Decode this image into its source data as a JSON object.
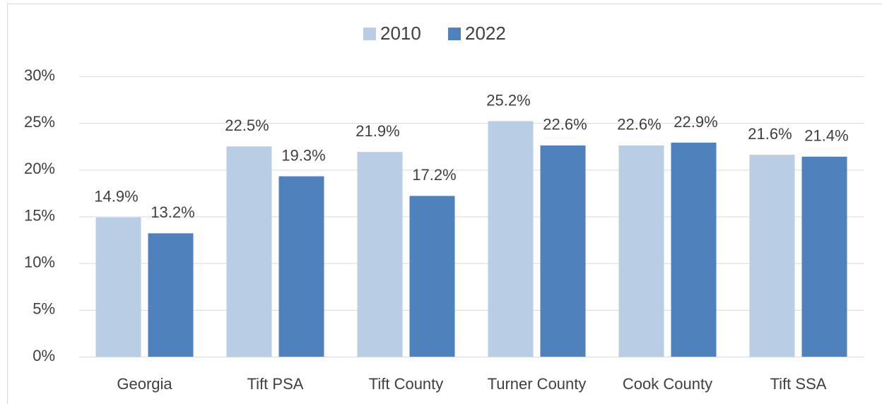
{
  "chart_data": {
    "type": "bar",
    "categories": [
      "Georgia",
      "Tift PSA",
      "Tift County",
      "Turner County",
      "Cook County",
      "Tift SSA"
    ],
    "series": [
      {
        "name": "2010",
        "color": "#b9cde5",
        "values": [
          14.9,
          22.5,
          21.9,
          25.2,
          22.6,
          21.6
        ],
        "value_labels": [
          "14.9%",
          "22.5%",
          "21.9%",
          "25.2%",
          "22.6%",
          "21.6%"
        ]
      },
      {
        "name": "2022",
        "color": "#4f81bd",
        "values": [
          13.2,
          19.3,
          17.2,
          22.6,
          22.9,
          21.4
        ],
        "value_labels": [
          "13.2%",
          "19.3%",
          "17.2%",
          "22.6%",
          "22.9%",
          "21.4%"
        ]
      }
    ],
    "ylim": [
      0,
      30
    ],
    "yticks": [
      {
        "value": 0,
        "label": "0%"
      },
      {
        "value": 5,
        "label": "5%"
      },
      {
        "value": 10,
        "label": "10%"
      },
      {
        "value": 15,
        "label": "15%"
      },
      {
        "value": 20,
        "label": "20%"
      },
      {
        "value": 25,
        "label": "25%"
      },
      {
        "value": 30,
        "label": "30%"
      }
    ],
    "grid": true,
    "legend": "top"
  }
}
